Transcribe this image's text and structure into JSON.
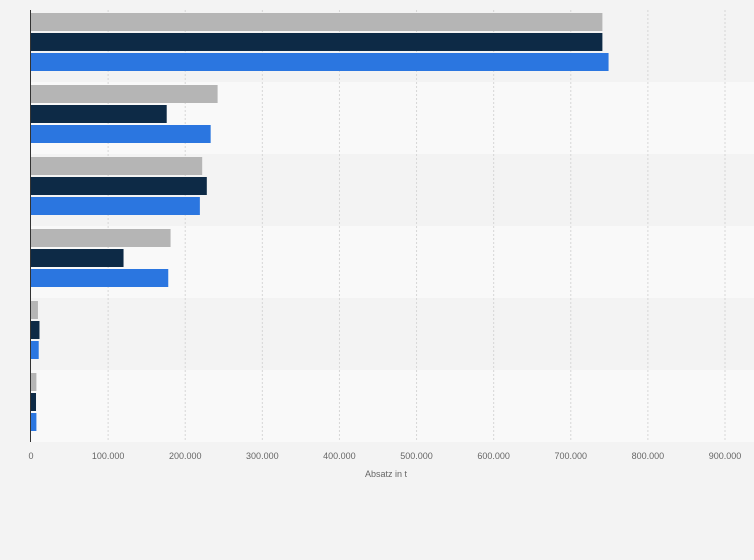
{
  "chart_data": {
    "type": "bar",
    "orientation": "horizontal",
    "title": "",
    "xlabel": "Absatz in t",
    "ylabel": "",
    "xlim": [
      0,
      900000
    ],
    "x_ticks": [
      0,
      100000,
      200000,
      300000,
      400000,
      500000,
      600000,
      700000,
      800000,
      900000
    ],
    "x_tick_labels": [
      "0",
      "100.000",
      "200.000",
      "300.000",
      "400.000",
      "500.000",
      "600.000",
      "700.000",
      "800.000",
      "900.000"
    ],
    "categories": [
      "",
      "",
      "",
      "",
      "",
      ""
    ],
    "series": [
      {
        "color": "#b5b5b5",
        "values": [
          741000,
          242000,
          222000,
          181000,
          9000,
          7000
        ]
      },
      {
        "color": "#0d2a46",
        "values": [
          741000,
          176000,
          228000,
          120000,
          11000,
          6500
        ]
      },
      {
        "color": "#2b76e0",
        "values": [
          749000,
          233000,
          219000,
          178000,
          10000,
          7000
        ]
      }
    ],
    "grid": true,
    "legend": "none"
  }
}
